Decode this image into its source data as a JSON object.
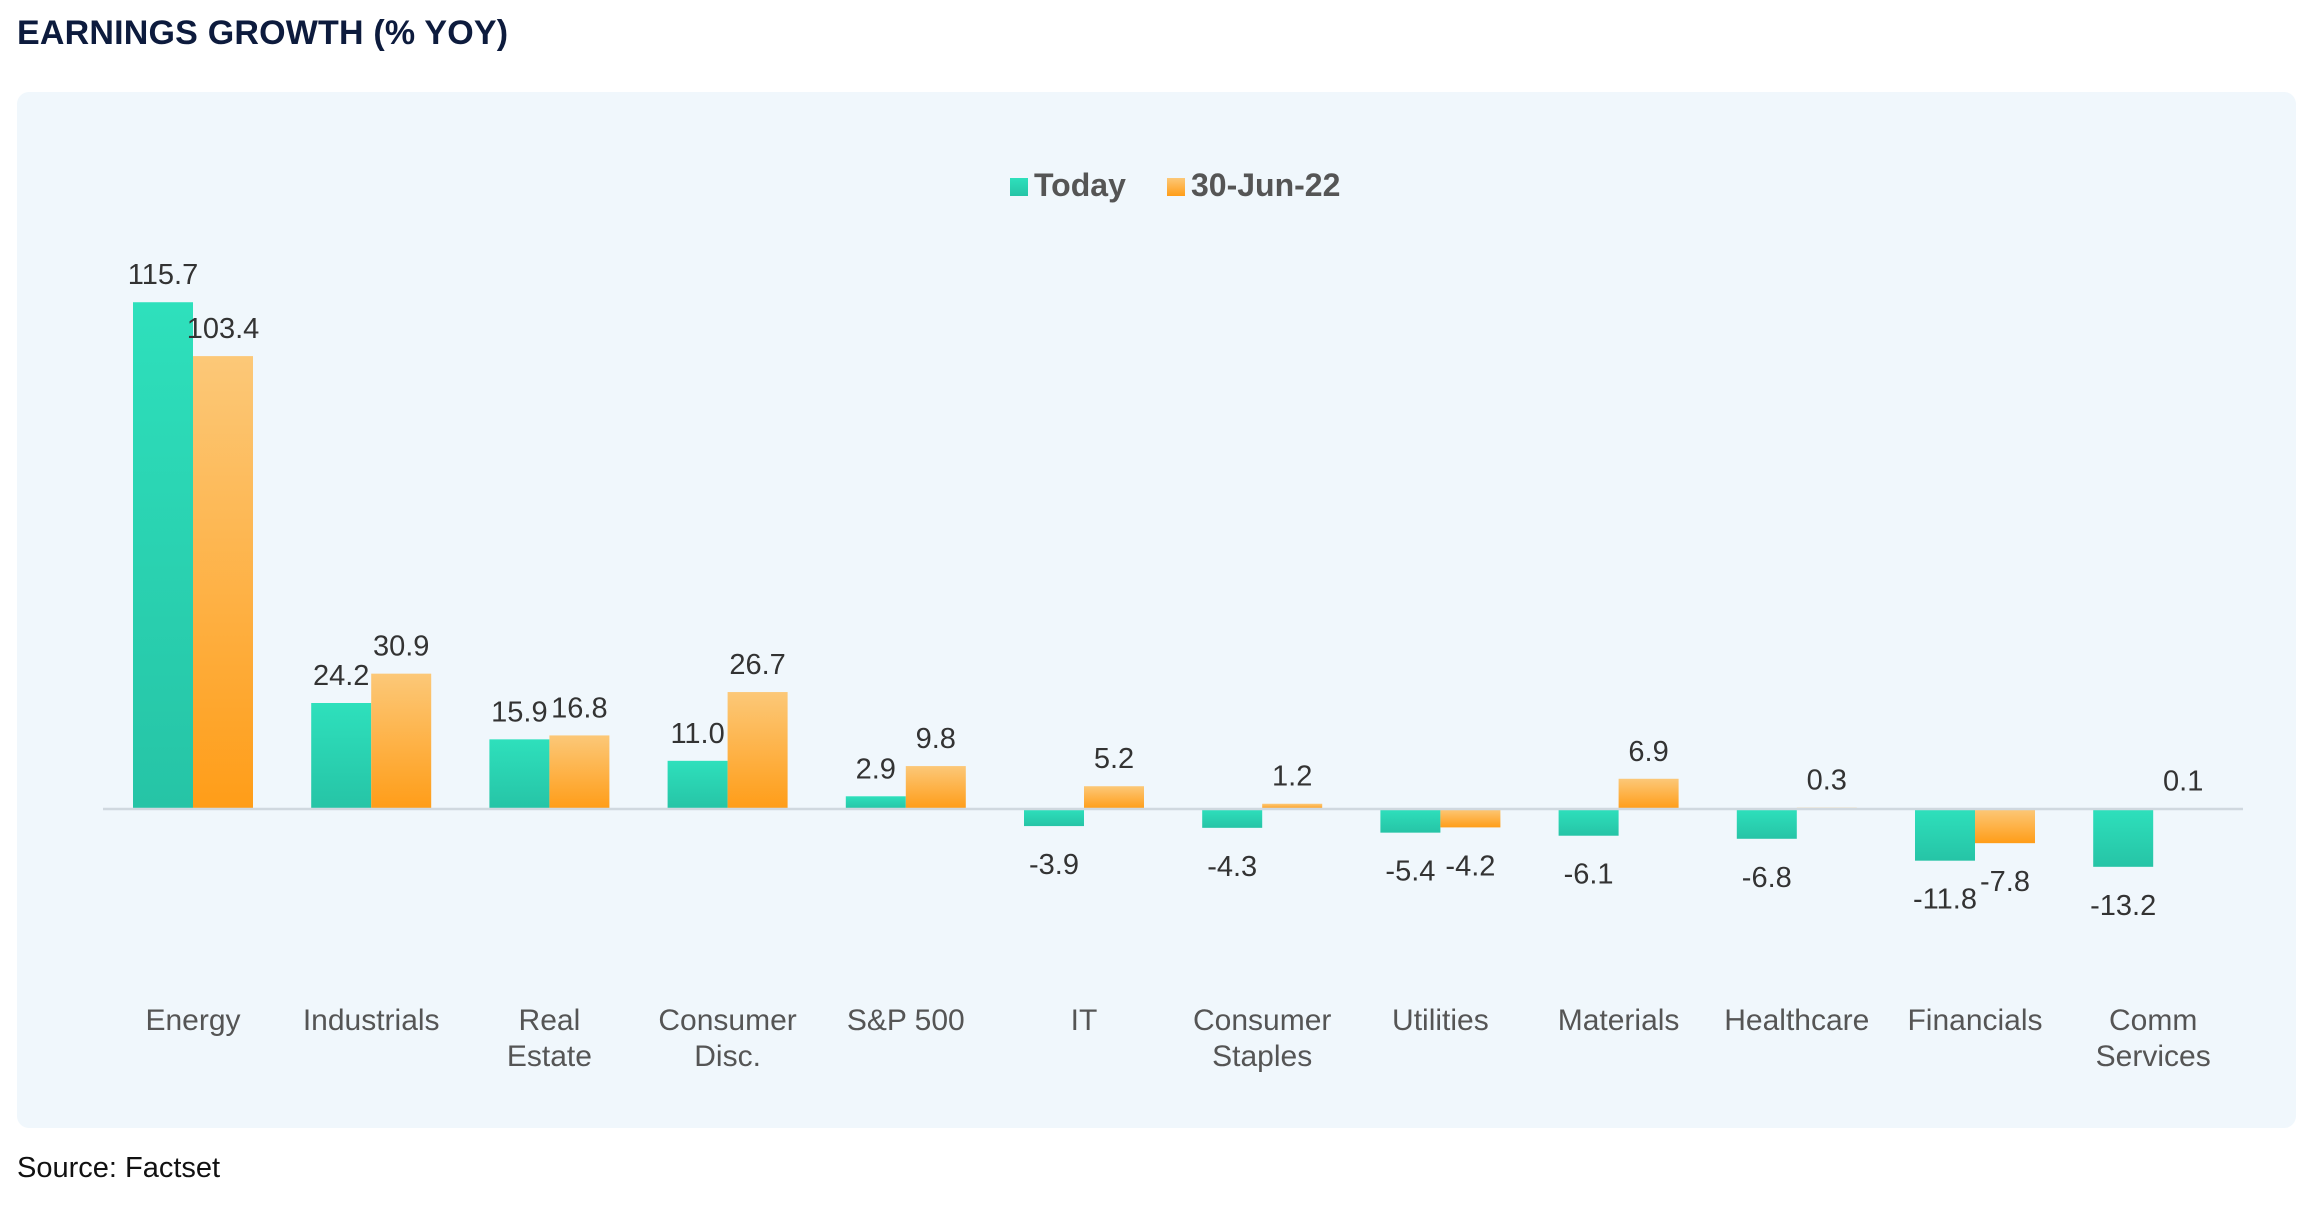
{
  "title": "EARNINGS GROWTH (% YOY)",
  "source": "Source: Factset",
  "colors": {
    "today_top": "#2ee0bc",
    "today_bottom": "#26c4a6",
    "prior_top": "#fcc878",
    "prior_bottom": "#ff9d18",
    "axis": "#d0d8df",
    "label": "#333333",
    "category": "#555555",
    "legend_text": "#555555"
  },
  "chart_data": {
    "type": "bar",
    "title": "EARNINGS GROWTH (% YOY)",
    "xlabel": "",
    "ylabel": "",
    "legend_position": "top-center",
    "grid": false,
    "categories": [
      [
        "Energy"
      ],
      [
        "Industrials"
      ],
      [
        "Real",
        "Estate"
      ],
      [
        "Consumer",
        "Disc."
      ],
      [
        "S&P 500"
      ],
      [
        "IT"
      ],
      [
        "Consumer",
        "Staples"
      ],
      [
        "Utilities"
      ],
      [
        "Materials"
      ],
      [
        "Healthcare"
      ],
      [
        "Financials"
      ],
      [
        "Comm",
        "Services"
      ]
    ],
    "series": [
      {
        "name": "Today",
        "values": [
          115.7,
          24.2,
          15.9,
          11.0,
          2.9,
          -3.9,
          -4.3,
          -5.4,
          -6.1,
          -6.8,
          -11.8,
          -13.2
        ],
        "labels": [
          "115.7",
          "24.2",
          "15.9",
          "11.0",
          "2.9",
          "-3.9",
          "-4.3",
          "-5.4",
          "-6.1",
          "-6.8",
          "-11.8",
          "-13.2"
        ]
      },
      {
        "name": "30-Jun-22",
        "values": [
          103.4,
          30.9,
          16.8,
          26.7,
          9.8,
          5.2,
          1.2,
          -4.2,
          6.9,
          0.3,
          -7.8,
          0.1
        ],
        "labels": [
          "103.4",
          "30.9",
          "16.8",
          "26.7",
          "9.8",
          "5.2",
          "1.2",
          "-4.2",
          "6.9",
          "0.3",
          "-7.8",
          "0.1"
        ]
      }
    ]
  }
}
